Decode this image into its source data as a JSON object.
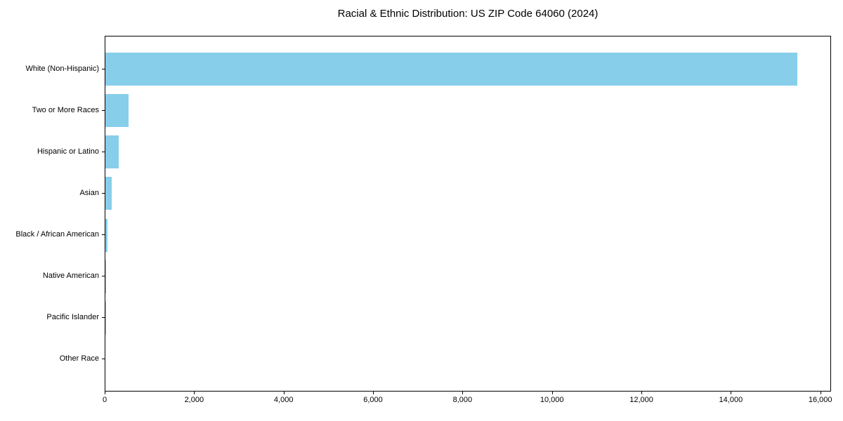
{
  "chart_data": {
    "type": "bar",
    "orientation": "horizontal",
    "title": "Racial & Ethnic Distribution: US ZIP Code 64060 (2024)",
    "categories": [
      "White (Non-Hispanic)",
      "Two or More Races",
      "Hispanic or Latino",
      "Asian",
      "Black / African American",
      "Native American",
      "Pacific Islander",
      "Other Race"
    ],
    "values": [
      15470,
      515,
      295,
      140,
      50,
      15,
      5,
      0
    ],
    "bar_color": "#87CEEB",
    "xlabel": "",
    "ylabel": "",
    "xlim": [
      0,
      16240
    ],
    "x_ticks": [
      0,
      2000,
      4000,
      6000,
      8000,
      10000,
      12000,
      14000,
      16000
    ],
    "x_tick_labels": [
      "0",
      "2,000",
      "4,000",
      "6,000",
      "8,000",
      "10,000",
      "12,000",
      "14,000",
      "16,000"
    ],
    "grid": false,
    "legend": "none",
    "background_color": "#ffffff",
    "text_color": "#000000"
  }
}
